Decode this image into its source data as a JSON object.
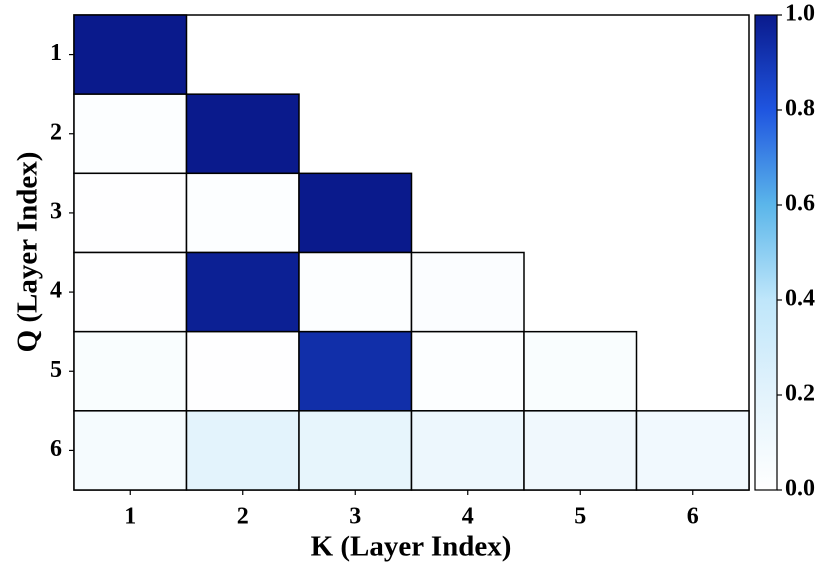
{
  "chart_data": {
    "type": "heatmap",
    "xlabel": "K (Layer Index)",
    "ylabel": "Q (Layer Index)",
    "x_categories": [
      "1",
      "2",
      "3",
      "4",
      "5",
      "6"
    ],
    "y_categories": [
      "1",
      "2",
      "3",
      "4",
      "5",
      "6"
    ],
    "values": [
      [
        1.0,
        null,
        null,
        null,
        null,
        null
      ],
      [
        0.02,
        1.0,
        null,
        null,
        null,
        null
      ],
      [
        0.01,
        0.02,
        1.0,
        null,
        null,
        null
      ],
      [
        0.01,
        0.98,
        0.02,
        0.03,
        null,
        null
      ],
      [
        0.04,
        0.01,
        0.93,
        0.02,
        0.04,
        null
      ],
      [
        0.07,
        0.2,
        0.17,
        0.13,
        0.11,
        0.1
      ]
    ],
    "colorscale": [
      "#ffffff",
      "#e3f3fc",
      "#bfe6fa",
      "#5bb6ea",
      "#1f55e0",
      "#0a1a8c"
    ],
    "colorbar_lim": [
      0,
      1
    ],
    "colorbar_ticks": [
      {
        "value": 0,
        "label": "0.0"
      },
      0.2,
      0.4,
      0.6,
      0.8,
      {
        "value": 1,
        "label": "1.0"
      }
    ]
  }
}
